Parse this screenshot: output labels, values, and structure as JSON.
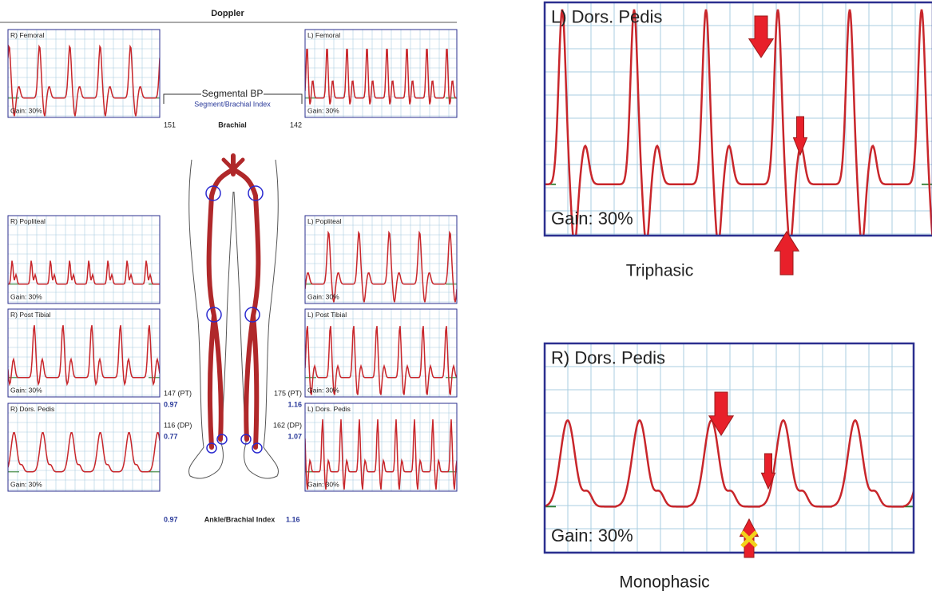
{
  "header": {
    "title": "Doppler"
  },
  "panels": [
    {
      "label": "R) Femoral",
      "gain": "Gain: 30%"
    },
    {
      "label": "L) Femoral",
      "gain": "Gain: 30%"
    },
    {
      "label": "R) Popliteal",
      "gain": "Gain: 30%"
    },
    {
      "label": "L) Popliteal",
      "gain": "Gain: 30%"
    },
    {
      "label": "R) Post Tibial",
      "gain": "Gain: 30%"
    },
    {
      "label": "L) Post Tibial",
      "gain": "Gain: 30%"
    },
    {
      "label": "R) Dors. Pedis",
      "gain": "Gain: 30%"
    },
    {
      "label": "L) Dors. Pedis",
      "gain": "Gain: 30%"
    }
  ],
  "segmental": {
    "title": "Segmental BP",
    "subtitle": "Segment/Brachial Index",
    "brachial_right": "151",
    "brachial_label": "Brachial",
    "brachial_left": "142"
  },
  "right_pressures": {
    "pt": "147 (PT)",
    "pt_index": "0.97",
    "dp": "116 (DP)",
    "dp_index": "0.77"
  },
  "left_pressures": {
    "pt": "175 (PT)",
    "pt_index": "1.16",
    "dp": "162 (DP)",
    "dp_index": "1.07"
  },
  "abi": {
    "right": "0.97",
    "label": "Ankle/Brachial Index",
    "left": "1.16"
  },
  "examples": [
    {
      "label": "L) Dors. Pedis",
      "gain": "Gain: 30%",
      "caption": "Triphasic"
    },
    {
      "label": "R) Dors. Pedis",
      "gain": "Gain: 30%",
      "caption": "Monophasic"
    }
  ]
}
